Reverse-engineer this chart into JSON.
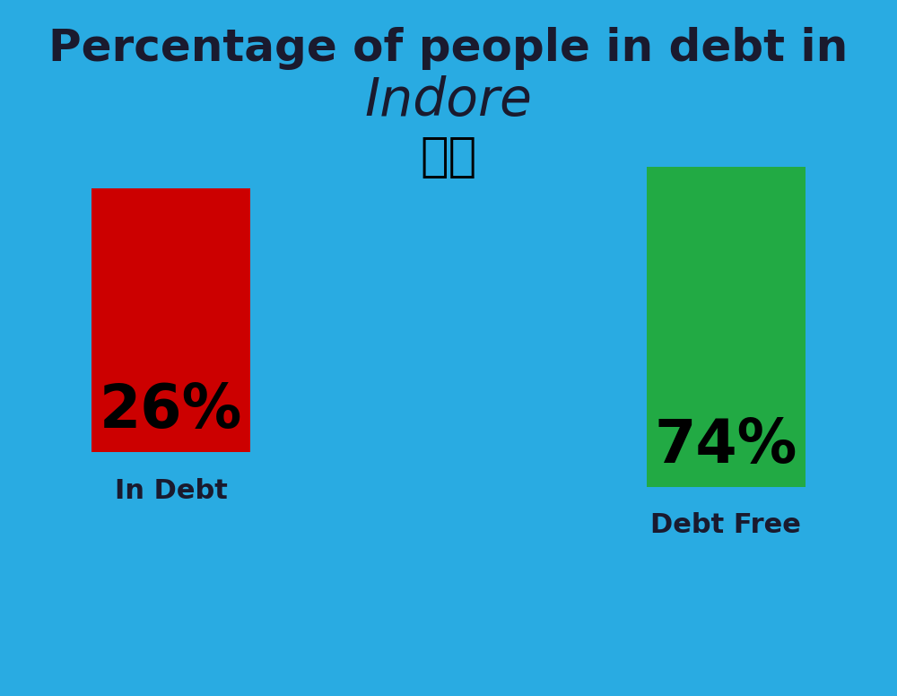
{
  "title_line1": "Percentage of people in debt in",
  "title_line2": "Indore",
  "background_color": "#29ABE2",
  "bar1_value": 26,
  "bar1_label": "26%",
  "bar1_color": "#CC0000",
  "bar1_caption": "In Debt",
  "bar2_value": 74,
  "bar2_label": "74%",
  "bar2_color": "#22AA44",
  "bar2_caption": "Debt Free",
  "label_color": "#1a1a2e",
  "title_color": "#1a1a2e",
  "caption_color": "#1a1a2e",
  "title_fontsize": 36,
  "subtitle_fontsize": 42,
  "bar_label_fontsize": 48,
  "caption_fontsize": 22,
  "flag_emoji": "🇮🇳"
}
